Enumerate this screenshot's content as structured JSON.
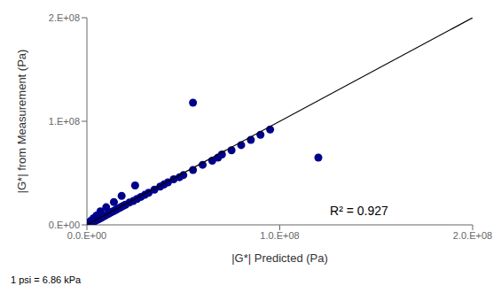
{
  "chart_data": {
    "type": "scatter",
    "xlabel": "|G*| Predicted (Pa)",
    "ylabel": "|G*| from Measurement (Pa)",
    "annotations": [
      "R² = 0.927",
      "1 psi = 6.86 kPa"
    ],
    "xlim": [
      0,
      200000000
    ],
    "ylim": [
      0,
      200000000
    ],
    "xticks": [
      {
        "value": 0,
        "label": "0.0.E+00"
      },
      {
        "value": 100000000,
        "label": "1.0.E+08"
      },
      {
        "value": 200000000,
        "label": "2.0.E+08"
      }
    ],
    "yticks": [
      {
        "value": 0,
        "label": "0.E+00"
      },
      {
        "value": 100000000,
        "label": "1.E+08"
      },
      {
        "value": 200000000,
        "label": "2.E+08"
      }
    ],
    "grid": false,
    "series": [
      {
        "type": "scatter",
        "color": "#00008B",
        "x": [
          300000,
          400000,
          500000,
          600000,
          700000,
          800000,
          900000,
          1000000,
          1200000,
          1400000,
          1600000,
          1800000,
          2000000,
          2200000,
          2500000,
          2800000,
          3000000,
          3300000,
          3600000,
          4000000,
          4500000,
          5000000,
          5500000,
          6000000,
          6500000,
          7000000,
          7500000,
          8000000,
          9000000,
          10000000,
          11000000,
          12000000,
          13000000,
          14000000,
          15000000,
          16000000,
          17000000,
          18000000,
          19000000,
          20000000,
          22000000,
          24000000,
          26000000,
          28000000,
          30000000,
          32000000,
          35000000,
          38000000,
          40000000,
          42000000,
          45000000,
          48000000,
          50000000,
          55000000,
          60000000,
          65000000,
          68000000,
          70000000,
          75000000,
          80000000,
          85000000,
          90000000,
          95000000,
          55000000,
          120000000,
          25000000,
          18000000,
          14000000,
          10000000,
          7000000,
          5000000,
          3500000,
          2500000,
          2000000,
          1500000,
          1000000,
          700000,
          500000
        ],
        "values": [
          200000,
          350000,
          450000,
          500000,
          600000,
          700000,
          800000,
          900000,
          1100000,
          1200000,
          1400000,
          1600000,
          1800000,
          2000000,
          2200000,
          2500000,
          2700000,
          3000000,
          3300000,
          3700000,
          4200000,
          4600000,
          5000000,
          5500000,
          6000000,
          6500000,
          7000000,
          7500000,
          8500000,
          9500000,
          10500000,
          11500000,
          12500000,
          13500000,
          14500000,
          15500000,
          16500000,
          17500000,
          18500000,
          19500000,
          21500000,
          23000000,
          25000000,
          27000000,
          29000000,
          31000000,
          34000000,
          37000000,
          39000000,
          41000000,
          44000000,
          46000000,
          48000000,
          53000000,
          58000000,
          62000000,
          65000000,
          68000000,
          72000000,
          77000000,
          82000000,
          87000000,
          92000000,
          118000000,
          65000000,
          38000000,
          28000000,
          22000000,
          17000000,
          13000000,
          9000000,
          6500000,
          4500000,
          3500000,
          2800000,
          2000000,
          1400000,
          900000
        ]
      },
      {
        "type": "line",
        "color": "#000000",
        "x": [
          0,
          200000000
        ],
        "values": [
          0,
          200000000
        ]
      }
    ]
  }
}
